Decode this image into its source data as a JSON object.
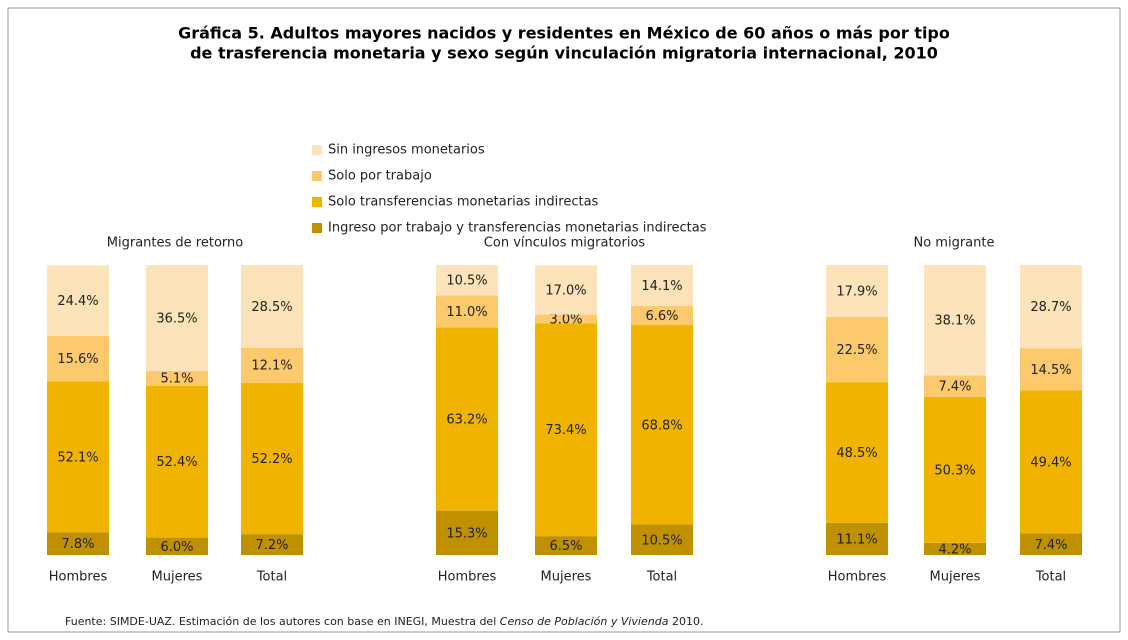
{
  "title": [
    "Gráfica 5. Adultos mayores nacidos y residentes en México de 60 años o más por tipo",
    "de trasferencia monetaria y sexo según vinculación migratoria internacional, 2010"
  ],
  "source": {
    "before": "Fuente: SIMDE-UAZ. Estimación de los autores con base en INEGI, Muestra del ",
    "italic": "Censo de Población y Vivienda",
    "after": " 2010."
  },
  "chart_data": [
    {
      "type": "bar",
      "stacked": true,
      "subtitle": "Migrantes de retorno",
      "categories": [
        "Hombres",
        "Mujeres",
        "Total"
      ],
      "series": [
        {
          "name": "Ingreso por trabajo y transferencias monetarias indirectas",
          "color": "#bf9000",
          "values": [
            7.8,
            6.0,
            7.2
          ],
          "value_labels": [
            "7.8%",
            "6.0%",
            "7.2%"
          ]
        },
        {
          "name": "Solo transferencias monetarias indirectas",
          "color": "#f0b400",
          "values": [
            52.1,
            52.4,
            52.2
          ],
          "value_labels": [
            "52.1%",
            "52.4%",
            "52.2%"
          ]
        },
        {
          "name": "Solo por trabajo",
          "color": "#fcc96c",
          "values": [
            15.6,
            5.1,
            12.1
          ],
          "value_labels": [
            "15.6%",
            "5.1%",
            "12.1%"
          ]
        },
        {
          "name": "Sin ingresos monetarios",
          "color": "#fde3b9",
          "values": [
            24.4,
            36.5,
            28.5
          ],
          "value_labels": [
            "24.4%",
            "36.5%",
            "28.5%"
          ]
        }
      ]
    },
    {
      "type": "bar",
      "stacked": true,
      "subtitle": "Con vínculos migratorios",
      "categories": [
        "Hombres",
        "Mujeres",
        "Total"
      ],
      "series": [
        {
          "name": "Ingreso por trabajo y transferencias monetarias indirectas",
          "color": "#bf9000",
          "values": [
            15.3,
            6.5,
            10.5
          ],
          "value_labels": [
            "15.3%",
            "6.5%",
            "10.5%"
          ]
        },
        {
          "name": "Solo transferencias monetarias indirectas",
          "color": "#f0b400",
          "values": [
            63.2,
            73.4,
            68.8
          ],
          "value_labels": [
            "63.2%",
            "73.4%",
            "68.8%"
          ]
        },
        {
          "name": "Solo por trabajo",
          "color": "#fcc96c",
          "values": [
            11.0,
            3.0,
            6.6
          ],
          "value_labels": [
            "11.0%",
            "3.0%",
            "6.6%"
          ]
        },
        {
          "name": "Sin ingresos monetarios",
          "color": "#fde3b9",
          "values": [
            10.5,
            17.0,
            14.1
          ],
          "value_labels": [
            "10.5%",
            "17.0%",
            "14.1%"
          ]
        }
      ]
    },
    {
      "type": "bar",
      "stacked": true,
      "subtitle": "No migrante",
      "categories": [
        "Hombres",
        "Mujeres",
        "Total"
      ],
      "series": [
        {
          "name": "Ingreso por trabajo y transferencias monetarias indirectas",
          "color": "#bf9000",
          "values": [
            11.1,
            4.2,
            7.4
          ],
          "value_labels": [
            "11.1%",
            "4.2%",
            "7.4%"
          ]
        },
        {
          "name": "Solo transferencias monetarias indirectas",
          "color": "#f0b400",
          "values": [
            48.5,
            50.3,
            49.4
          ],
          "value_labels": [
            "48.5%",
            "50.3%",
            "49.4%"
          ]
        },
        {
          "name": "Solo por trabajo",
          "color": "#fcc96c",
          "values": [
            22.5,
            7.4,
            14.5
          ],
          "value_labels": [
            "22.5%",
            "7.4%",
            "14.5%"
          ]
        },
        {
          "name": "Sin ingresos monetarios",
          "color": "#fde3b9",
          "values": [
            17.9,
            38.1,
            28.7
          ],
          "value_labels": [
            "17.9%",
            "38.1%",
            "28.7%"
          ]
        }
      ]
    }
  ]
}
